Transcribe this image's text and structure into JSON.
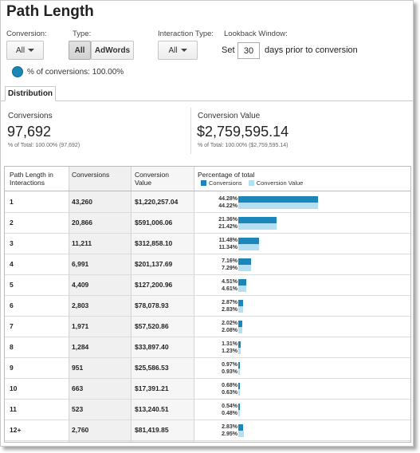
{
  "page": {
    "title": "Path Length"
  },
  "controls": {
    "conversion_label": "Conversion:",
    "conversion_value": "All",
    "type_label": "Type:",
    "type_options": [
      "All",
      "AdWords"
    ],
    "interaction_label": "Interaction Type:",
    "interaction_value": "All",
    "lookback_label": "Lookback Window:",
    "set_label": "Set",
    "days_value": "30",
    "days_suffix": "days prior to conversion",
    "pct_conversions": "% of conversions: 100.00%"
  },
  "tabs": [
    "Distribution"
  ],
  "summary": {
    "conversions": {
      "label": "Conversions",
      "value": "97,692",
      "sub": "% of Total: 100.00% (97,692)"
    },
    "conversion_value": {
      "label": "Conversion Value",
      "value": "$2,759,595.14",
      "sub": "% of Total: 100.00% ($2,759,595.14)"
    }
  },
  "table": {
    "headers": [
      "Path Length in Interactions",
      "Conversions",
      "Conversion Value",
      "Percentage of total"
    ],
    "legend": [
      "Conversions",
      "Conversion Value"
    ],
    "colors": {
      "conversions": "#1a86b9",
      "conversion_value": "#b3dff2"
    },
    "rows": [
      {
        "path": "1",
        "conversions": "43,260",
        "value": "$1,220,257.04",
        "pct_conv": "44.28%",
        "pct_val": "44.22%"
      },
      {
        "path": "2",
        "conversions": "20,866",
        "value": "$591,006.06",
        "pct_conv": "21.36%",
        "pct_val": "21.42%"
      },
      {
        "path": "3",
        "conversions": "11,211",
        "value": "$312,858.10",
        "pct_conv": "11.48%",
        "pct_val": "11.34%"
      },
      {
        "path": "4",
        "conversions": "6,991",
        "value": "$201,137.69",
        "pct_conv": "7.16%",
        "pct_val": "7.29%"
      },
      {
        "path": "5",
        "conversions": "4,409",
        "value": "$127,200.96",
        "pct_conv": "4.51%",
        "pct_val": "4.61%"
      },
      {
        "path": "6",
        "conversions": "2,803",
        "value": "$78,078.93",
        "pct_conv": "2.87%",
        "pct_val": "2.83%"
      },
      {
        "path": "7",
        "conversions": "1,971",
        "value": "$57,520.86",
        "pct_conv": "2.02%",
        "pct_val": "2.08%"
      },
      {
        "path": "8",
        "conversions": "1,284",
        "value": "$33,897.40",
        "pct_conv": "1.31%",
        "pct_val": "1.23%"
      },
      {
        "path": "9",
        "conversions": "951",
        "value": "$25,586.53",
        "pct_conv": "0.97%",
        "pct_val": "0.93%"
      },
      {
        "path": "10",
        "conversions": "663",
        "value": "$17,391.21",
        "pct_conv": "0.68%",
        "pct_val": "0.63%"
      },
      {
        "path": "11",
        "conversions": "523",
        "value": "$13,240.51",
        "pct_conv": "0.54%",
        "pct_val": "0.48%"
      },
      {
        "path": "12+",
        "conversions": "2,760",
        "value": "$81,419.85",
        "pct_conv": "2.83%",
        "pct_val": "2.95%"
      }
    ]
  }
}
